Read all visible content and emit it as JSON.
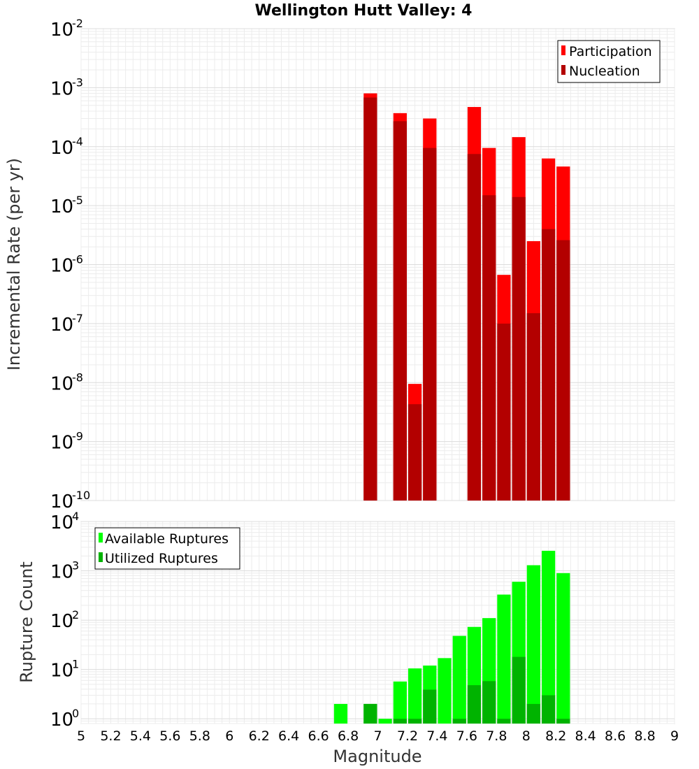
{
  "chart_data": [
    {
      "type": "bar",
      "title": "Wellington Hutt Valley: 4",
      "xlabel": "Magnitude",
      "ylabel": "Incremental Rate (per yr)",
      "yscale": "log",
      "xlim": [
        5,
        9
      ],
      "ylim": [
        1e-10,
        0.01
      ],
      "bar_width": 0.1,
      "grid": true,
      "legend_position": "top-right",
      "legend": [
        "Participation",
        "Nucleation"
      ],
      "colors": {
        "Participation": "#ff0000",
        "Nucleation": "#b30000"
      },
      "series": [
        {
          "name": "Participation",
          "x": [
            6.95,
            7.15,
            7.25,
            7.35,
            7.65,
            7.75,
            7.85,
            7.95,
            8.05,
            8.15,
            8.25
          ],
          "values": [
            0.0008,
            0.00037,
            9.5e-09,
            0.0003,
            0.00047,
            9.5e-05,
            6.7e-07,
            0.000145,
            2.5e-06,
            6.3e-05,
            4.6e-05
          ]
        },
        {
          "name": "Nucleation",
          "x": [
            6.95,
            7.15,
            7.25,
            7.35,
            7.65,
            7.75,
            7.85,
            7.95,
            8.05,
            8.15,
            8.25
          ],
          "values": [
            0.00068,
            0.00027,
            4.3e-09,
            9.5e-05,
            7.5e-05,
            1.5e-05,
            1e-07,
            1.4e-05,
            1.5e-07,
            4e-06,
            2.6e-06
          ]
        }
      ]
    },
    {
      "type": "bar",
      "xlabel": "Magnitude",
      "ylabel": "Rupture Count",
      "yscale": "log",
      "xlim": [
        5,
        9
      ],
      "ylim": [
        0.8,
        10000
      ],
      "bar_width": 0.1,
      "grid": true,
      "legend_position": "top-left",
      "legend": [
        "Available Ruptures",
        "Utilized Ruptures"
      ],
      "colors": {
        "Available Ruptures": "#00ff00",
        "Utilized Ruptures": "#00b300"
      },
      "x_ticks": [
        "5",
        "5.2",
        "5.4",
        "5.6",
        "5.8",
        "6",
        "6.2",
        "6.4",
        "6.6",
        "6.8",
        "7",
        "7.2",
        "7.4",
        "7.6",
        "7.8",
        "8",
        "8.2",
        "8.4",
        "8.6",
        "8.8",
        "9"
      ],
      "series": [
        {
          "name": "Available Ruptures",
          "x": [
            6.75,
            6.95,
            7.05,
            7.15,
            7.25,
            7.35,
            7.45,
            7.55,
            7.65,
            7.75,
            7.85,
            7.95,
            8.05,
            8.15,
            8.25
          ],
          "values": [
            2,
            2,
            1,
            5.7,
            10.5,
            12,
            17,
            48,
            73,
            110,
            330,
            600,
            1300,
            2550,
            900
          ]
        },
        {
          "name": "Utilized Ruptures",
          "x": [
            6.95,
            7.15,
            7.25,
            7.35,
            7.55,
            7.65,
            7.75,
            7.85,
            7.95,
            8.05,
            8.15,
            8.25
          ],
          "values": [
            2,
            1,
            1,
            3.9,
            1,
            4.8,
            5.8,
            1,
            18,
            2,
            3,
            1
          ]
        }
      ]
    }
  ]
}
